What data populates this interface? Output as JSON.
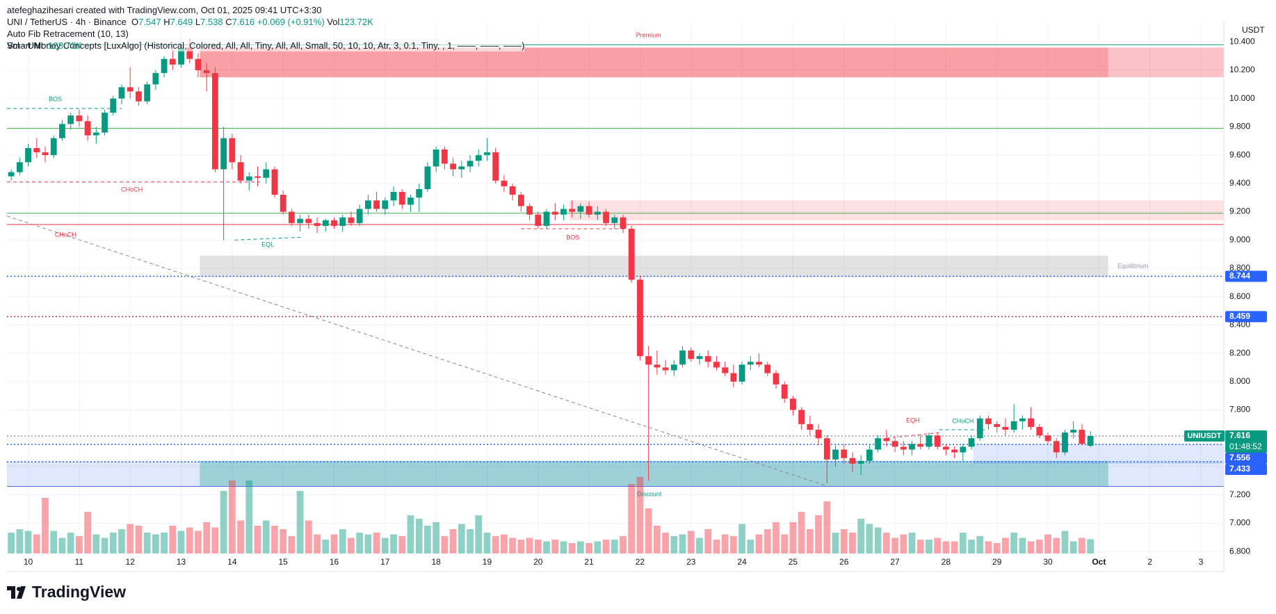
{
  "header": {
    "credit": "atefeghazihesari created with TradingView.com, Oct 01, 2025 09:41 UTC+3:30",
    "symbol": "UNI / TetherUS · 4h · Binance",
    "ohlc": [
      {
        "key": "O",
        "value": 7.547
      },
      {
        "key": "H",
        "value": 7.649
      },
      {
        "key": "L",
        "value": 7.538
      },
      {
        "key": "C",
        "value": 7.616
      }
    ],
    "change": "+0.069 (+0.91%)",
    "vol_key": "Vol",
    "vol_value": "123.72K",
    "indicators": [
      "Auto Fib Retracement (10, 13)",
      "Smart Money Concepts [LuxAlgo] (Historical, Colored, All, All, Tiny, All, All, Small, 50, 10, 10, Atr, 3, 0.1, Tiny, , 1, ——, ——, ——)"
    ],
    "vol_indicator": "Vol · UNI",
    "vol_indicator_value": "123.72K"
  },
  "chart_data": {
    "type": "candlestick",
    "currency": "USDT",
    "up_color": "#089981",
    "down_color": "#f23645",
    "xlim": [
      -0.5,
      142.7
    ],
    "ylim": [
      6.766,
      10.534
    ],
    "xticks": [
      {
        "value": 2,
        "label": "10"
      },
      {
        "value": 8,
        "label": "11"
      },
      {
        "value": 14,
        "label": "12"
      },
      {
        "value": 20,
        "label": "13"
      },
      {
        "value": 26,
        "label": "14"
      },
      {
        "value": 32,
        "label": "15"
      },
      {
        "value": 38,
        "label": "16"
      },
      {
        "value": 44,
        "label": "17"
      },
      {
        "value": 50,
        "label": "18"
      },
      {
        "value": 56,
        "label": "19"
      },
      {
        "value": 62,
        "label": "20"
      },
      {
        "value": 68,
        "label": "21"
      },
      {
        "value": 74,
        "label": "22"
      },
      {
        "value": 80,
        "label": "23"
      },
      {
        "value": 86,
        "label": "24"
      },
      {
        "value": 92,
        "label": "25"
      },
      {
        "value": 98,
        "label": "26"
      },
      {
        "value": 104,
        "label": "27"
      },
      {
        "value": 110,
        "label": "28"
      },
      {
        "value": 116,
        "label": "29"
      },
      {
        "value": 122,
        "label": "30"
      },
      {
        "value": 128,
        "label": "Oct"
      },
      {
        "value": 134,
        "label": "2"
      },
      {
        "value": 140,
        "label": "3"
      }
    ],
    "yticks": [
      {
        "value": 6.8,
        "label": "6.800"
      },
      {
        "value": 7.0,
        "label": "7.000"
      },
      {
        "value": 7.2,
        "label": "7.200"
      },
      {
        "value": 7.4,
        "label": "7.400"
      },
      {
        "value": 7.6,
        "label": "7.600"
      },
      {
        "value": 7.8,
        "label": "7.800"
      },
      {
        "value": 8.0,
        "label": "8.000"
      },
      {
        "value": 8.2,
        "label": "8.200"
      },
      {
        "value": 8.4,
        "label": "8.400"
      },
      {
        "value": 8.6,
        "label": "8.600"
      },
      {
        "value": 8.8,
        "label": "8.800"
      },
      {
        "value": 9.0,
        "label": "9.000"
      },
      {
        "value": 9.2,
        "label": "9.200"
      },
      {
        "value": 9.4,
        "label": "9.400"
      },
      {
        "value": 9.6,
        "label": "9.600"
      },
      {
        "value": 9.8,
        "label": "9.800"
      },
      {
        "value": 10.0,
        "label": "10.000"
      },
      {
        "value": 10.2,
        "label": "10.200"
      },
      {
        "value": 10.4,
        "label": "10.400"
      }
    ],
    "grid": true,
    "candles": [
      [
        9.45,
        9.5,
        9.42,
        9.48
      ],
      [
        9.48,
        9.58,
        9.46,
        9.55
      ],
      [
        9.55,
        9.68,
        9.52,
        9.65
      ],
      [
        9.65,
        9.72,
        9.58,
        9.62
      ],
      [
        9.62,
        9.66,
        9.55,
        9.6
      ],
      [
        9.6,
        9.74,
        9.58,
        9.72
      ],
      [
        9.72,
        9.85,
        9.7,
        9.82
      ],
      [
        9.82,
        9.9,
        9.78,
        9.88
      ],
      [
        9.88,
        9.92,
        9.8,
        9.84
      ],
      [
        9.84,
        9.88,
        9.7,
        9.74
      ],
      [
        9.74,
        9.8,
        9.68,
        9.76
      ],
      [
        9.76,
        9.92,
        9.74,
        9.9
      ],
      [
        9.9,
        10.02,
        9.88,
        10.0
      ],
      [
        10.0,
        10.1,
        9.96,
        10.08
      ],
      [
        10.08,
        10.22,
        10.0,
        10.05
      ],
      [
        10.05,
        10.08,
        9.95,
        9.98
      ],
      [
        9.98,
        10.12,
        9.96,
        10.1
      ],
      [
        10.1,
        10.2,
        10.06,
        10.18
      ],
      [
        10.18,
        10.3,
        10.15,
        10.28
      ],
      [
        10.28,
        10.35,
        10.2,
        10.24
      ],
      [
        10.24,
        10.4,
        10.22,
        10.36
      ],
      [
        10.36,
        10.42,
        10.25,
        10.28
      ],
      [
        10.28,
        10.32,
        10.15,
        10.2
      ],
      [
        10.2,
        10.25,
        10.05,
        10.18
      ],
      [
        10.18,
        10.22,
        9.48,
        9.5
      ],
      [
        9.5,
        9.8,
        9.0,
        9.72
      ],
      [
        9.72,
        9.75,
        9.5,
        9.55
      ],
      [
        9.55,
        9.6,
        9.4,
        9.42
      ],
      [
        9.42,
        9.48,
        9.35,
        9.45
      ],
      [
        9.45,
        9.52,
        9.38,
        9.44
      ],
      [
        9.44,
        9.55,
        9.4,
        9.5
      ],
      [
        9.5,
        9.52,
        9.3,
        9.32
      ],
      [
        9.32,
        9.35,
        9.18,
        9.2
      ],
      [
        9.2,
        9.22,
        9.1,
        9.12
      ],
      [
        9.12,
        9.18,
        9.06,
        9.15
      ],
      [
        9.15,
        9.18,
        9.08,
        9.12
      ],
      [
        9.12,
        9.16,
        9.05,
        9.1
      ],
      [
        9.1,
        9.15,
        9.06,
        9.14
      ],
      [
        9.14,
        9.16,
        9.08,
        9.1
      ],
      [
        9.1,
        9.18,
        9.06,
        9.16
      ],
      [
        9.16,
        9.2,
        9.1,
        9.12
      ],
      [
        9.12,
        9.25,
        9.1,
        9.22
      ],
      [
        9.22,
        9.32,
        9.18,
        9.28
      ],
      [
        9.28,
        9.34,
        9.2,
        9.22
      ],
      [
        9.22,
        9.3,
        9.18,
        9.28
      ],
      [
        9.28,
        9.38,
        9.24,
        9.34
      ],
      [
        9.34,
        9.36,
        9.22,
        9.25
      ],
      [
        9.25,
        9.32,
        9.2,
        9.3
      ],
      [
        9.3,
        9.4,
        9.2,
        9.36
      ],
      [
        9.36,
        9.55,
        9.34,
        9.52
      ],
      [
        9.52,
        9.66,
        9.48,
        9.64
      ],
      [
        9.64,
        9.66,
        9.5,
        9.54
      ],
      [
        9.54,
        9.58,
        9.45,
        9.5
      ],
      [
        9.5,
        9.56,
        9.44,
        9.52
      ],
      [
        9.52,
        9.6,
        9.48,
        9.56
      ],
      [
        9.56,
        9.64,
        9.52,
        9.6
      ],
      [
        9.6,
        9.72,
        9.56,
        9.62
      ],
      [
        9.62,
        9.65,
        9.4,
        9.42
      ],
      [
        9.42,
        9.46,
        9.34,
        9.38
      ],
      [
        9.38,
        9.4,
        9.28,
        9.32
      ],
      [
        9.32,
        9.34,
        9.2,
        9.24
      ],
      [
        9.24,
        9.26,
        9.14,
        9.18
      ],
      [
        9.18,
        9.2,
        9.08,
        9.1
      ],
      [
        9.1,
        9.22,
        9.08,
        9.2
      ],
      [
        9.2,
        9.26,
        9.14,
        9.18
      ],
      [
        9.18,
        9.25,
        9.14,
        9.22
      ],
      [
        9.22,
        9.28,
        9.16,
        9.2
      ],
      [
        9.2,
        9.26,
        9.15,
        9.24
      ],
      [
        9.24,
        9.27,
        9.16,
        9.18
      ],
      [
        9.18,
        9.24,
        9.14,
        9.2
      ],
      [
        9.2,
        9.22,
        9.1,
        9.12
      ],
      [
        9.12,
        9.18,
        9.08,
        9.16
      ],
      [
        9.16,
        9.18,
        9.05,
        9.08
      ],
      [
        9.08,
        9.1,
        8.7,
        8.72
      ],
      [
        8.72,
        8.75,
        8.15,
        8.18
      ],
      [
        8.18,
        8.25,
        7.3,
        8.12
      ],
      [
        8.12,
        8.22,
        8.05,
        8.1
      ],
      [
        8.1,
        8.15,
        8.05,
        8.08
      ],
      [
        8.08,
        8.15,
        8.04,
        8.12
      ],
      [
        8.12,
        8.25,
        8.1,
        8.22
      ],
      [
        8.22,
        8.24,
        8.14,
        8.16
      ],
      [
        8.16,
        8.2,
        8.12,
        8.18
      ],
      [
        8.18,
        8.22,
        8.1,
        8.14
      ],
      [
        8.14,
        8.18,
        8.08,
        8.1
      ],
      [
        8.1,
        8.14,
        8.04,
        8.06
      ],
      [
        8.06,
        8.12,
        7.96,
        8.0
      ],
      [
        8.0,
        8.14,
        7.98,
        8.12
      ],
      [
        8.12,
        8.18,
        8.08,
        8.14
      ],
      [
        8.14,
        8.2,
        8.1,
        8.12
      ],
      [
        8.12,
        8.14,
        8.04,
        8.06
      ],
      [
        8.06,
        8.08,
        7.95,
        7.98
      ],
      [
        7.98,
        8.0,
        7.85,
        7.88
      ],
      [
        7.88,
        7.9,
        7.76,
        7.8
      ],
      [
        7.8,
        7.82,
        7.66,
        7.7
      ],
      [
        7.7,
        7.76,
        7.62,
        7.66
      ],
      [
        7.66,
        7.7,
        7.55,
        7.6
      ],
      [
        7.6,
        7.62,
        7.28,
        7.45
      ],
      [
        7.45,
        7.55,
        7.4,
        7.52
      ],
      [
        7.52,
        7.56,
        7.42,
        7.46
      ],
      [
        7.46,
        7.5,
        7.36,
        7.42
      ],
      [
        7.42,
        7.48,
        7.34,
        7.44
      ],
      [
        7.44,
        7.55,
        7.42,
        7.52
      ],
      [
        7.52,
        7.62,
        7.5,
        7.6
      ],
      [
        7.6,
        7.66,
        7.54,
        7.58
      ],
      [
        7.58,
        7.6,
        7.5,
        7.54
      ],
      [
        7.54,
        7.58,
        7.48,
        7.52
      ],
      [
        7.52,
        7.58,
        7.48,
        7.56
      ],
      [
        7.56,
        7.62,
        7.52,
        7.54
      ],
      [
        7.54,
        7.64,
        7.52,
        7.62
      ],
      [
        7.62,
        7.64,
        7.52,
        7.54
      ],
      [
        7.54,
        7.56,
        7.48,
        7.52
      ],
      [
        7.52,
        7.54,
        7.46,
        7.5
      ],
      [
        7.5,
        7.56,
        7.44,
        7.54
      ],
      [
        7.54,
        7.62,
        7.52,
        7.6
      ],
      [
        7.6,
        7.76,
        7.58,
        7.74
      ],
      [
        7.74,
        7.76,
        7.66,
        7.7
      ],
      [
        7.7,
        7.72,
        7.64,
        7.68
      ],
      [
        7.68,
        7.74,
        7.62,
        7.66
      ],
      [
        7.66,
        7.84,
        7.64,
        7.72
      ],
      [
        7.72,
        7.76,
        7.66,
        7.74
      ],
      [
        7.74,
        7.82,
        7.66,
        7.68
      ],
      [
        7.68,
        7.7,
        7.6,
        7.62
      ],
      [
        7.62,
        7.64,
        7.56,
        7.58
      ],
      [
        7.58,
        7.6,
        7.46,
        7.5
      ],
      [
        7.5,
        7.66,
        7.48,
        7.64
      ],
      [
        7.64,
        7.72,
        7.6,
        7.66
      ],
      [
        7.66,
        7.7,
        7.55,
        7.56
      ],
      [
        7.547,
        7.649,
        7.538,
        7.616
      ]
    ],
    "volumes": [
      180,
      210,
      195,
      165,
      480,
      195,
      135,
      180,
      150,
      360,
      165,
      135,
      180,
      210,
      255,
      240,
      180,
      165,
      180,
      240,
      195,
      225,
      195,
      270,
      225,
      540,
      630,
      285,
      630,
      240,
      285,
      240,
      210,
      150,
      540,
      285,
      165,
      120,
      165,
      210,
      135,
      180,
      165,
      180,
      135,
      165,
      150,
      330,
      300,
      240,
      270,
      150,
      210,
      255,
      210,
      330,
      180,
      150,
      165,
      135,
      120,
      135,
      120,
      105,
      120,
      105,
      90,
      105,
      90,
      105,
      120,
      120,
      150,
      600,
      660,
      390,
      240,
      180,
      150,
      165,
      195,
      135,
      210,
      120,
      165,
      150,
      255,
      120,
      165,
      210,
      270,
      165,
      270,
      360,
      210,
      330,
      450,
      180,
      210,
      180,
      300,
      255,
      225,
      180,
      135,
      165,
      180,
      120,
      120,
      135,
      105,
      105,
      180,
      120,
      150,
      105,
      90,
      135,
      180,
      135,
      105,
      120,
      165,
      135,
      195,
      105,
      135,
      123.72
    ],
    "levels": [
      {
        "value": 10.38,
        "color": "#089981"
      },
      {
        "value": 9.79,
        "color": "#4caf50"
      },
      {
        "value": 9.19,
        "color": "#4caf50"
      },
      {
        "value": 9.11,
        "color": "#f23645"
      },
      {
        "value": 7.26,
        "color": "#5b6bd6"
      }
    ],
    "zones": [
      {
        "top": 10.36,
        "bottom": 10.15,
        "x0": 22.2,
        "x1": 142.7,
        "color": "#f23645",
        "opacity": 0.3
      },
      {
        "top": 10.36,
        "bottom": 10.15,
        "x0": 22.2,
        "x1": 129.1,
        "color": "#f23645",
        "opacity": 0.25
      },
      {
        "top": 9.28,
        "bottom": 9.14,
        "x0": 65.7,
        "x1": 142.7,
        "color": "#f23645",
        "opacity": 0.15
      },
      {
        "top": 8.89,
        "bottom": 8.74,
        "x0": 22.2,
        "x1": 129.1,
        "color": "#9e9e9e",
        "opacity": 0.3
      },
      {
        "top": 7.44,
        "bottom": 7.26,
        "x0": -0.5,
        "x1": 142.7,
        "color": "#2962ff",
        "opacity": 0.15
      },
      {
        "top": 7.44,
        "bottom": 7.26,
        "x0": 22.2,
        "x1": 129.1,
        "color": "#089981",
        "opacity": 0.3
      },
      {
        "top": 7.56,
        "bottom": 7.42,
        "x0": 113.2,
        "x1": 142.7,
        "color": "#2962ff",
        "opacity": 0.15
      }
    ],
    "structure_lines": [
      {
        "x": [
          -0.5,
          13
        ],
        "y": [
          9.93,
          9.93
        ],
        "color": "#089981"
      },
      {
        "x": [
          -0.5,
          29.3
        ],
        "y": [
          9.41,
          9.41
        ],
        "color": "#f23645"
      },
      {
        "x": [
          26.3,
          34.2
        ],
        "y": [
          9.0,
          9.02
        ],
        "color": "#089981"
      },
      {
        "x": [
          60,
          72.4
        ],
        "y": [
          9.08,
          9.08
        ],
        "color": "#f23645"
      },
      {
        "x": [
          103,
          109.2
        ],
        "y": [
          7.6,
          7.64
        ],
        "color": "#f23645"
      },
      {
        "x": [
          109.2,
          114.6
        ],
        "y": [
          7.66,
          7.66
        ],
        "color": "#089981"
      },
      {
        "x": [
          -0.5,
          96.1
        ],
        "y": [
          9.17,
          7.26
        ],
        "color": "#888888"
      }
    ],
    "annotations": [
      {
        "text": "Premium",
        "x": 75,
        "y": 10.446,
        "color": "#f23645"
      },
      {
        "text": "Equilibrium",
        "x": 132,
        "y": 8.814,
        "color": "#9598a1"
      },
      {
        "text": "Discount",
        "x": 75.1,
        "y": 7.203,
        "color": "#089981"
      },
      {
        "text": "BOS",
        "x": 5.2,
        "y": 9.994,
        "color": "#089981"
      },
      {
        "text": "CHoCH",
        "x": 14.2,
        "y": 9.355,
        "color": "#f23645"
      },
      {
        "text": "CHoCH",
        "x": 6.4,
        "y": 9.035,
        "color": "#f23645"
      },
      {
        "text": "EQL",
        "x": 30.2,
        "y": 8.966,
        "color": "#089981"
      },
      {
        "text": "BOS",
        "x": 66.1,
        "y": 9.016,
        "color": "#f23645"
      },
      {
        "text": "EQH",
        "x": 106.1,
        "y": 7.723,
        "color": "#f23645"
      },
      {
        "text": "CHoCH",
        "x": 112,
        "y": 7.718,
        "color": "#089981"
      }
    ],
    "price_labels": [
      {
        "value": 8.744,
        "color": "#2962ff",
        "line_color": "#2962ff"
      },
      {
        "value": 8.459,
        "color": "#2962ff",
        "line_color": "#b2334a"
      },
      {
        "value": 7.616,
        "color": "#089981",
        "line_color": "#9598a1",
        "name": "UNIUSDT",
        "countdown": "01:48:52"
      },
      {
        "value": 7.556,
        "color": "#2962ff",
        "line_color": "#2962ff"
      },
      {
        "value": 7.433,
        "color": "#2962ff",
        "line_color": "#2962ff"
      }
    ]
  },
  "footer": {
    "brand": "TradingView"
  }
}
